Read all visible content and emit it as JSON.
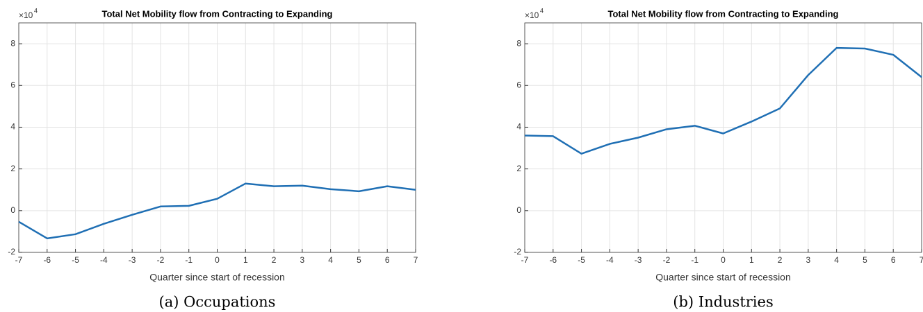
{
  "chart_data": [
    {
      "type": "line",
      "title": "Total Net Mobility flow from Contracting to Expanding",
      "xlabel": "Quarter since start of recession",
      "caption": "(a) Occupations",
      "y_multiplier": "×10",
      "y_multiplier_exponent": "4",
      "x": [
        -7,
        -6,
        -5,
        -4,
        -3,
        -2,
        -1,
        0,
        1,
        2,
        3,
        4,
        5,
        6,
        7
      ],
      "series": [
        {
          "name": "Occupations",
          "color": "#1f6fb4",
          "values": [
            -0.53,
            -1.33,
            -1.13,
            -0.63,
            -0.2,
            0.2,
            0.23,
            0.57,
            1.3,
            1.17,
            1.2,
            1.03,
            0.93,
            1.17,
            1.0
          ]
        }
      ],
      "xlim": [
        -7,
        7
      ],
      "xticks": [
        -7,
        -6,
        -5,
        -4,
        -3,
        -2,
        -1,
        0,
        1,
        2,
        3,
        4,
        5,
        6,
        7
      ],
      "ylim": [
        -2,
        9
      ],
      "yticks": [
        -2,
        0,
        2,
        4,
        6,
        8
      ],
      "grid": true
    },
    {
      "type": "line",
      "title": "Total Net Mobility flow from Contracting to Expanding",
      "xlabel": "Quarter since start of recession",
      "caption": "(b) Industries",
      "y_multiplier": "×10",
      "y_multiplier_exponent": "4",
      "x": [
        -7,
        -6,
        -5,
        -4,
        -3,
        -2,
        -1,
        0,
        1,
        2,
        3,
        4,
        5,
        6,
        7
      ],
      "series": [
        {
          "name": "Industries",
          "color": "#1f6fb4",
          "values": [
            3.6,
            3.57,
            2.73,
            3.2,
            3.5,
            3.9,
            4.07,
            3.7,
            4.27,
            4.9,
            6.5,
            7.8,
            7.77,
            7.47,
            6.4
          ]
        }
      ],
      "xlim": [
        -7,
        7
      ],
      "xticks": [
        -7,
        -6,
        -5,
        -4,
        -3,
        -2,
        -1,
        0,
        1,
        2,
        3,
        4,
        5,
        6,
        7
      ],
      "ylim": [
        -2,
        9
      ],
      "yticks": [
        -2,
        0,
        2,
        4,
        6,
        8
      ],
      "grid": true
    }
  ]
}
